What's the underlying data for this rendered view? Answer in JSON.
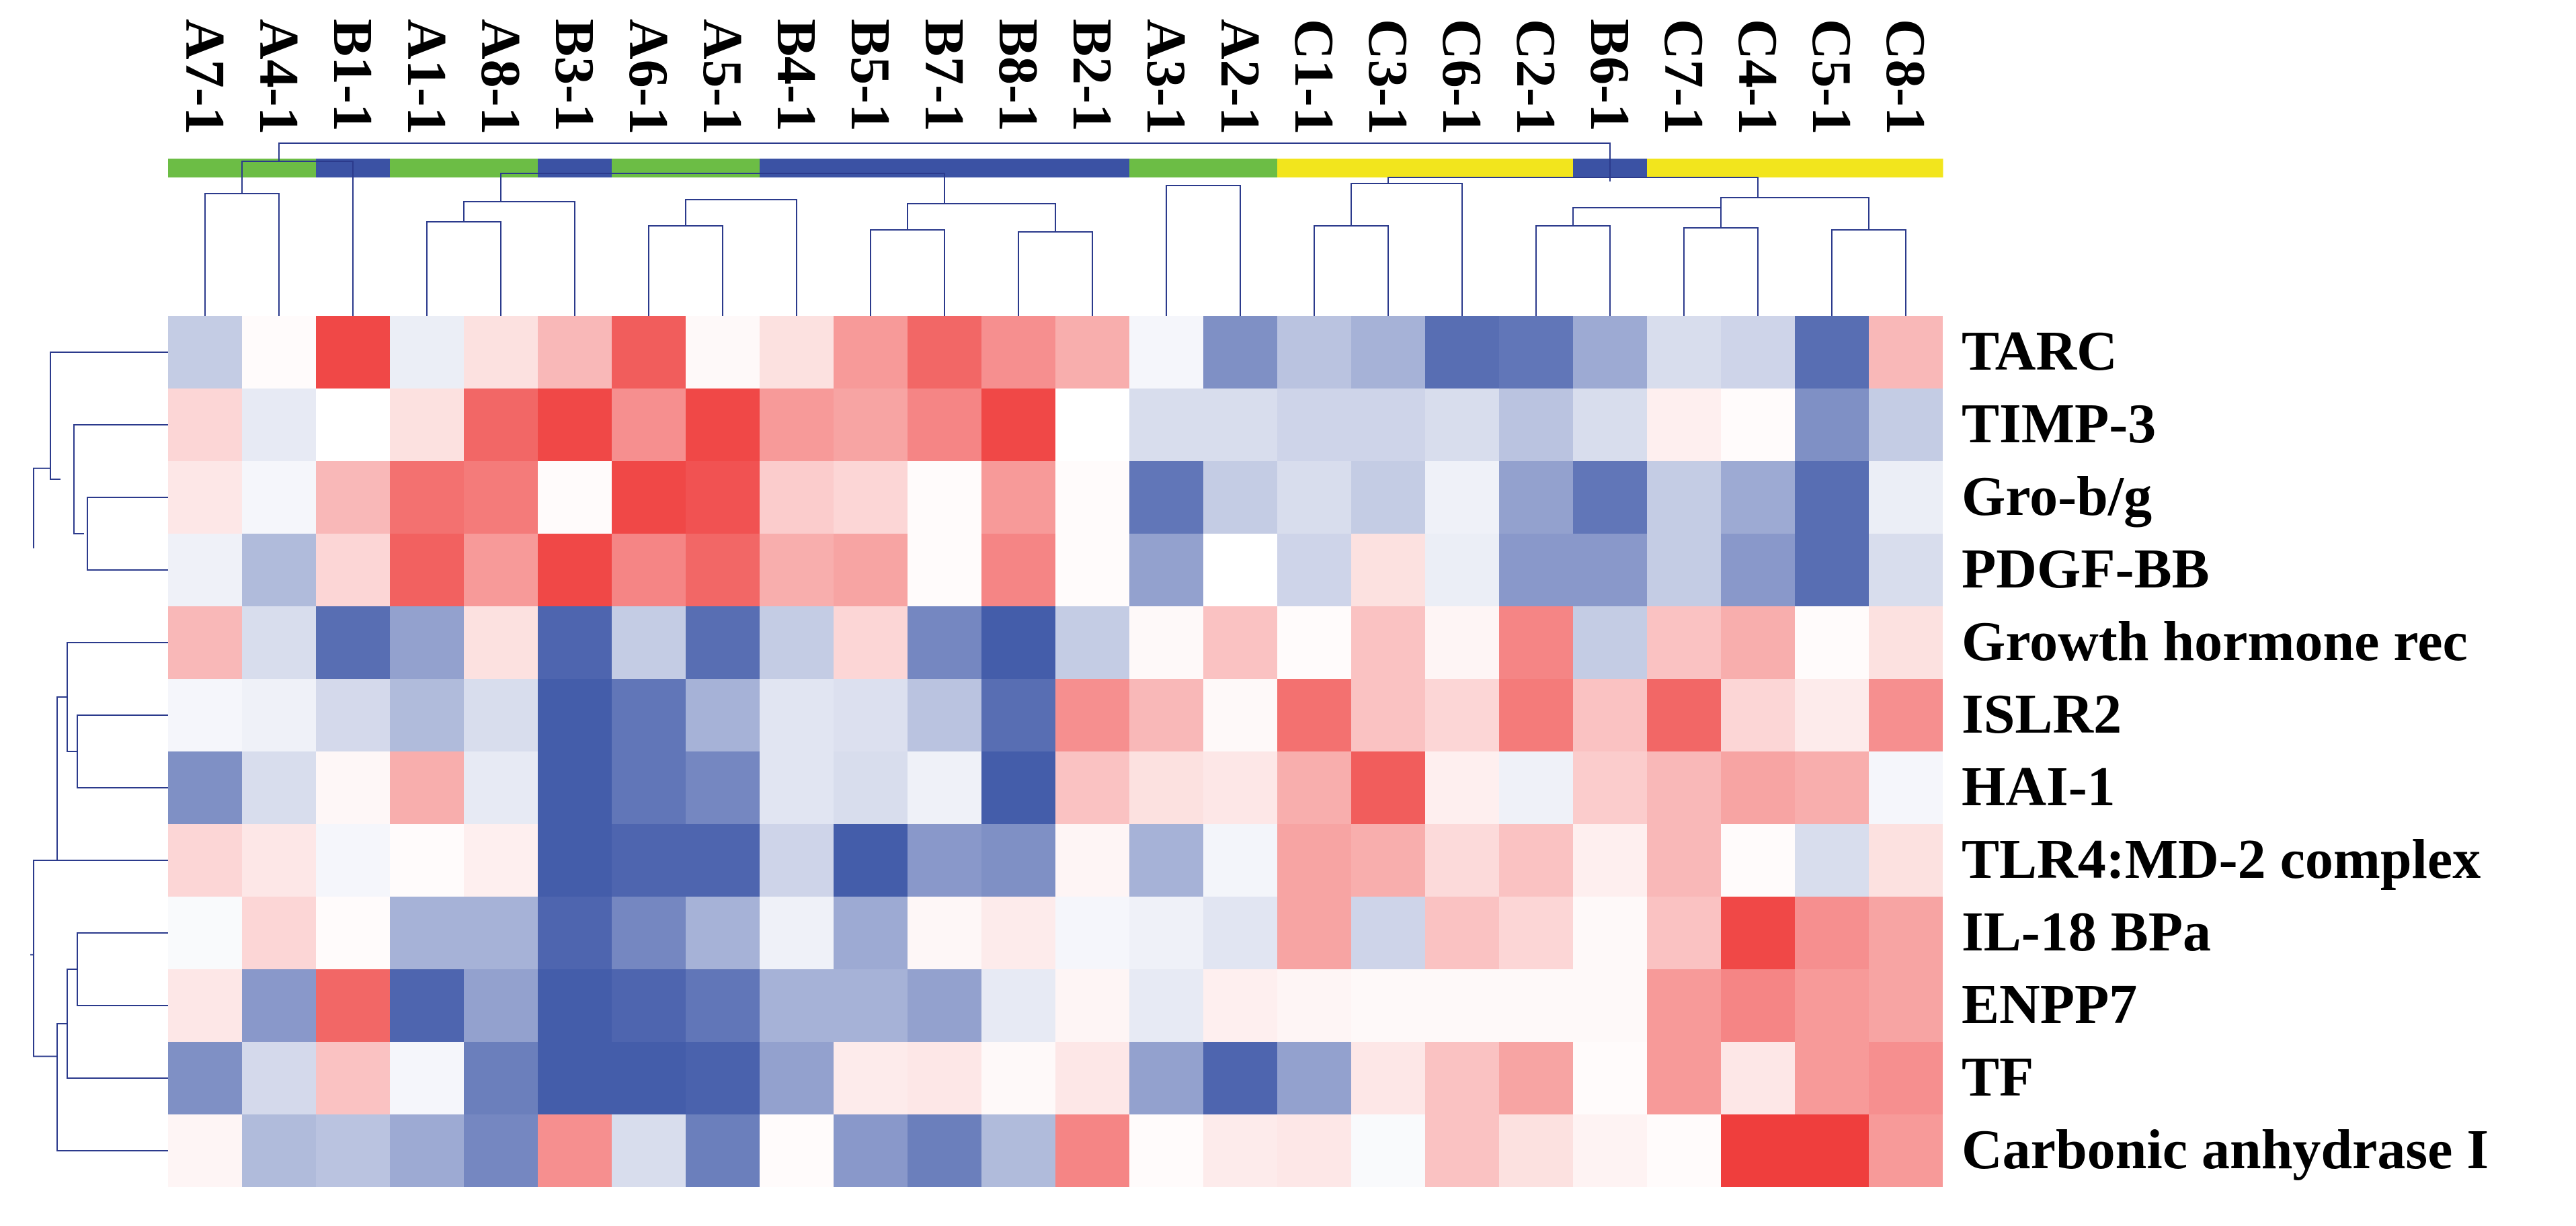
{
  "chart_data": {
    "type": "heatmap",
    "title": "",
    "xlabel": "",
    "ylabel": "",
    "columns": [
      "A7-1",
      "A4-1",
      "B1-1",
      "A1-1",
      "A8-1",
      "B3-1",
      "A6-1",
      "A5-1",
      "B4-1",
      "B5-1",
      "B7-1",
      "B8-1",
      "B2-1",
      "A3-1",
      "A2-1",
      "C1-1",
      "C3-1",
      "C6-1",
      "C2-1",
      "B6-1",
      "C7-1",
      "C4-1",
      "C5-1",
      "C8-1"
    ],
    "column_groups": [
      "A",
      "A",
      "B",
      "A",
      "A",
      "B",
      "A",
      "A",
      "B",
      "B",
      "B",
      "B",
      "B",
      "A",
      "A",
      "C",
      "C",
      "C",
      "C",
      "B",
      "C",
      "C",
      "C",
      "C"
    ],
    "group_colors": {
      "A": "#6cbd45",
      "B": "#3b52a4",
      "C": "#f2e51d"
    },
    "rows": [
      "TARC",
      "TIMP-3",
      "Gro-b/g",
      "PDGF-BB",
      "Growth hormone rec",
      "ISLR2",
      "HAI-1",
      "TLR4:MD-2 complex",
      "IL-18 BPa",
      "ENPP7",
      "TF",
      "Carbonic anhydrase I"
    ],
    "color_scale": {
      "low": "#3a54a6",
      "mid": "#ffffff",
      "high": "#ee3433"
    },
    "value_range": [
      -1,
      1
    ],
    "values": [
      [
        -0.3,
        0.02,
        0.9,
        -0.1,
        0.15,
        0.35,
        0.8,
        0.03,
        0.15,
        0.5,
        0.75,
        0.55,
        0.4,
        -0.05,
        -0.65,
        -0.35,
        -0.45,
        -0.85,
        -0.8,
        -0.5,
        -0.2,
        -0.25,
        -0.85,
        0.35
      ],
      [
        0.2,
        -0.12,
        0.0,
        0.15,
        0.75,
        0.9,
        0.55,
        0.9,
        0.5,
        0.45,
        0.6,
        0.9,
        0.0,
        -0.2,
        -0.2,
        -0.25,
        -0.25,
        -0.2,
        -0.35,
        -0.2,
        0.08,
        0.02,
        -0.65,
        -0.3
      ],
      [
        0.12,
        -0.05,
        0.35,
        0.7,
        0.65,
        0.02,
        0.9,
        0.85,
        0.25,
        0.2,
        0.02,
        0.5,
        0.02,
        -0.8,
        -0.3,
        -0.2,
        -0.3,
        -0.08,
        -0.55,
        -0.8,
        -0.3,
        -0.5,
        -0.85,
        -0.1
      ],
      [
        -0.08,
        -0.4,
        0.2,
        0.78,
        0.5,
        0.9,
        0.6,
        0.75,
        0.4,
        0.45,
        0.02,
        0.6,
        0.02,
        -0.55,
        0.0,
        -0.25,
        0.15,
        -0.1,
        -0.6,
        -0.6,
        -0.3,
        -0.6,
        -0.85,
        -0.2
      ],
      [
        0.35,
        -0.2,
        -0.85,
        -0.55,
        0.15,
        -0.9,
        -0.3,
        -0.85,
        -0.3,
        0.2,
        -0.7,
        -0.95,
        -0.3,
        0.03,
        0.3,
        0.02,
        0.3,
        0.05,
        0.6,
        -0.3,
        0.3,
        0.4,
        0.02,
        0.15
      ],
      [
        -0.05,
        -0.08,
        -0.22,
        -0.4,
        -0.2,
        -0.95,
        -0.8,
        -0.45,
        -0.15,
        -0.18,
        -0.35,
        -0.85,
        0.55,
        0.35,
        0.03,
        0.7,
        0.3,
        0.2,
        0.65,
        0.3,
        0.75,
        0.2,
        0.1,
        0.55
      ],
      [
        -0.65,
        -0.2,
        0.04,
        0.4,
        -0.12,
        -0.95,
        -0.8,
        -0.7,
        -0.15,
        -0.2,
        -0.08,
        -0.95,
        0.3,
        0.15,
        0.12,
        0.4,
        0.8,
        0.08,
        -0.08,
        0.25,
        0.35,
        0.45,
        0.4,
        -0.05
      ],
      [
        0.2,
        0.12,
        -0.05,
        0.02,
        0.08,
        -0.95,
        -0.9,
        -0.9,
        -0.25,
        -0.95,
        -0.6,
        -0.65,
        0.05,
        -0.45,
        -0.06,
        0.45,
        0.4,
        0.18,
        0.3,
        0.08,
        0.35,
        0.02,
        -0.2,
        0.15
      ],
      [
        -0.03,
        0.2,
        0.02,
        -0.45,
        -0.45,
        -0.9,
        -0.7,
        -0.45,
        -0.08,
        -0.5,
        0.04,
        0.1,
        -0.05,
        -0.08,
        -0.15,
        0.45,
        -0.25,
        0.3,
        0.2,
        0.03,
        0.3,
        0.9,
        0.55,
        0.45
      ],
      [
        0.12,
        -0.6,
        0.75,
        -0.9,
        -0.55,
        -0.95,
        -0.9,
        -0.8,
        -0.45,
        -0.45,
        -0.55,
        -0.12,
        0.05,
        -0.12,
        0.08,
        0.05,
        0.03,
        0.03,
        0.03,
        0.03,
        0.5,
        0.6,
        0.5,
        0.45
      ],
      [
        -0.65,
        -0.22,
        0.3,
        -0.05,
        -0.75,
        -0.95,
        -0.95,
        -0.92,
        -0.55,
        0.1,
        0.12,
        0.03,
        0.12,
        -0.55,
        -0.9,
        -0.55,
        0.12,
        0.3,
        0.45,
        0.02,
        0.5,
        0.12,
        0.5,
        0.55
      ],
      [
        0.05,
        -0.4,
        -0.35,
        -0.5,
        -0.7,
        0.55,
        -0.2,
        -0.75,
        0.02,
        -0.6,
        -0.75,
        -0.4,
        0.6,
        0.02,
        0.1,
        0.12,
        -0.03,
        0.3,
        0.15,
        0.06,
        0.02,
        0.95,
        0.95,
        0.5
      ]
    ],
    "grid": false,
    "legend": "none"
  }
}
